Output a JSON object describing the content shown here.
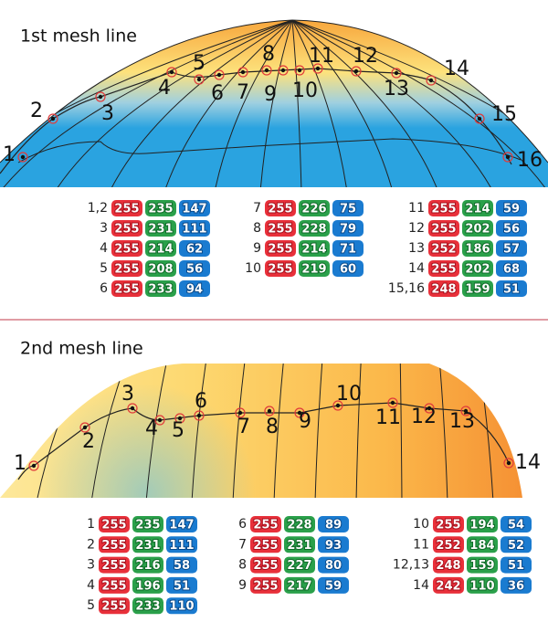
{
  "panels": [
    {
      "title": "1st mesh line",
      "points": [
        "1",
        "2",
        "3",
        "4",
        "5",
        "6",
        "7",
        "8",
        "9",
        "10",
        "11",
        "12",
        "13",
        "14",
        "15",
        "16"
      ],
      "columns": [
        [
          {
            "label": "1,2",
            "rgb": [
              255,
              235,
              147
            ]
          },
          {
            "label": "3",
            "rgb": [
              255,
              231,
              111
            ]
          },
          {
            "label": "4",
            "rgb": [
              255,
              214,
              62
            ]
          },
          {
            "label": "5",
            "rgb": [
              255,
              208,
              56
            ]
          },
          {
            "label": "6",
            "rgb": [
              255,
              233,
              94
            ]
          }
        ],
        [
          {
            "label": "7",
            "rgb": [
              255,
              226,
              75
            ]
          },
          {
            "label": "8",
            "rgb": [
              255,
              228,
              79
            ]
          },
          {
            "label": "9",
            "rgb": [
              255,
              214,
              71
            ]
          },
          {
            "label": "10",
            "rgb": [
              255,
              219,
              60
            ]
          }
        ],
        [
          {
            "label": "11",
            "rgb": [
              255,
              214,
              59
            ]
          },
          {
            "label": "12",
            "rgb": [
              255,
              202,
              56
            ]
          },
          {
            "label": "13",
            "rgb": [
              252,
              186,
              57
            ]
          },
          {
            "label": "14",
            "rgb": [
              255,
              202,
              68
            ]
          },
          {
            "label": "15,16",
            "rgb": [
              248,
              159,
              51
            ]
          }
        ]
      ]
    },
    {
      "title": "2nd mesh line",
      "points": [
        "1",
        "2",
        "3",
        "4",
        "5",
        "6",
        "7",
        "8",
        "9",
        "10",
        "11",
        "12",
        "13",
        "14"
      ],
      "columns": [
        [
          {
            "label": "1",
            "rgb": [
              255,
              235,
              147
            ]
          },
          {
            "label": "2",
            "rgb": [
              255,
              231,
              111
            ]
          },
          {
            "label": "3",
            "rgb": [
              255,
              216,
              58
            ]
          },
          {
            "label": "4",
            "rgb": [
              255,
              196,
              51
            ]
          },
          {
            "label": "5",
            "rgb": [
              255,
              233,
              110
            ]
          }
        ],
        [
          {
            "label": "6",
            "rgb": [
              255,
              228,
              89
            ]
          },
          {
            "label": "7",
            "rgb": [
              255,
              231,
              93
            ]
          },
          {
            "label": "8",
            "rgb": [
              255,
              227,
              80
            ]
          },
          {
            "label": "9",
            "rgb": [
              255,
              217,
              59
            ]
          }
        ],
        [
          {
            "label": "10",
            "rgb": [
              255,
              194,
              54
            ]
          },
          {
            "label": "11",
            "rgb": [
              252,
              184,
              52
            ]
          },
          {
            "label": "12,13",
            "rgb": [
              248,
              159,
              51
            ]
          },
          {
            "label": "14",
            "rgb": [
              242,
              110,
              36
            ]
          }
        ]
      ]
    }
  ]
}
